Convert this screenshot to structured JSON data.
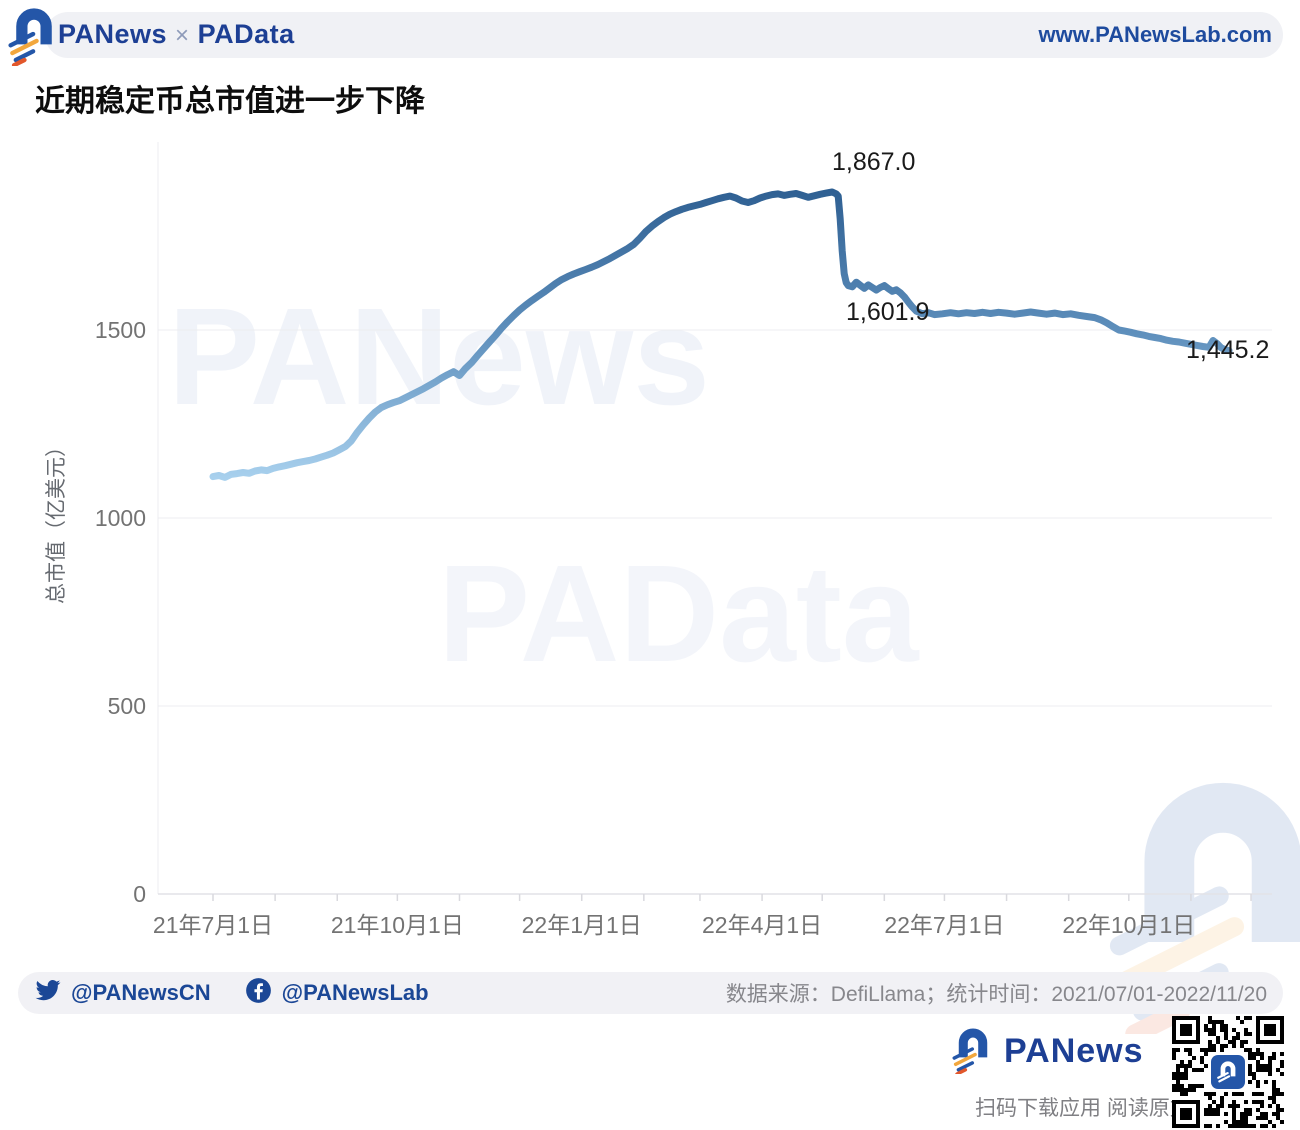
{
  "header": {
    "brand_left": "PANews",
    "brand_sep": "×",
    "brand_right": "PAData",
    "url": "www.PANewsLab.com"
  },
  "title": "近期稳定币总市值进一步下降",
  "watermarks": {
    "upper": "PANews",
    "center": "PAData"
  },
  "chart_data": {
    "type": "line",
    "title": "近期稳定币总市值进一步下降",
    "ylabel": "总市值（亿美元）",
    "ylim": [
      0,
      2000
    ],
    "y_ticks": [
      0,
      500,
      1000,
      1500
    ],
    "grid": true,
    "x_start_date": "2021-07-01",
    "x_end_date": "2022-11-20",
    "x_ticks": [
      {
        "date": "2021-07-01",
        "label": "21年7月1日"
      },
      {
        "date": "2021-10-01",
        "label": "21年10月1日"
      },
      {
        "date": "2022-01-01",
        "label": "22年1月1日"
      },
      {
        "date": "2022-04-01",
        "label": "22年4月1日"
      },
      {
        "date": "2022-07-01",
        "label": "22年7月1日"
      },
      {
        "date": "2022-10-01",
        "label": "22年10月1日"
      }
    ],
    "annotations": {
      "peak": {
        "label": "1,867.0",
        "value": 1867.0
      },
      "post_drop": {
        "label": "1,601.9",
        "value": 1601.9
      },
      "latest": {
        "label": "1,445.2",
        "value": 1445.2
      }
    },
    "line_gradient": {
      "high": "#2d5e91",
      "mid": "#5e8fbc",
      "low": "#a9d1ee"
    },
    "series": [
      {
        "name": "稳定币总市值",
        "points": [
          [
            0,
            1110
          ],
          [
            3,
            1113
          ],
          [
            6,
            1108
          ],
          [
            9,
            1116
          ],
          [
            12,
            1118
          ],
          [
            15,
            1121
          ],
          [
            18,
            1119
          ],
          [
            21,
            1125
          ],
          [
            24,
            1128
          ],
          [
            27,
            1126
          ],
          [
            30,
            1132
          ],
          [
            33,
            1136
          ],
          [
            36,
            1139
          ],
          [
            39,
            1143
          ],
          [
            42,
            1147
          ],
          [
            45,
            1150
          ],
          [
            48,
            1153
          ],
          [
            51,
            1157
          ],
          [
            54,
            1162
          ],
          [
            57,
            1167
          ],
          [
            60,
            1173
          ],
          [
            63,
            1181
          ],
          [
            66,
            1190
          ],
          [
            69,
            1205
          ],
          [
            72,
            1228
          ],
          [
            75,
            1248
          ],
          [
            78,
            1266
          ],
          [
            81,
            1282
          ],
          [
            84,
            1294
          ],
          [
            87,
            1301
          ],
          [
            90,
            1307
          ],
          [
            93,
            1312
          ],
          [
            96,
            1320
          ],
          [
            99,
            1328
          ],
          [
            102,
            1336
          ],
          [
            105,
            1344
          ],
          [
            108,
            1353
          ],
          [
            111,
            1362
          ],
          [
            114,
            1372
          ],
          [
            117,
            1381
          ],
          [
            120,
            1389
          ],
          [
            123,
            1379
          ],
          [
            126,
            1398
          ],
          [
            129,
            1413
          ],
          [
            132,
            1432
          ],
          [
            135,
            1450
          ],
          [
            138,
            1468
          ],
          [
            141,
            1486
          ],
          [
            144,
            1505
          ],
          [
            147,
            1522
          ],
          [
            150,
            1538
          ],
          [
            153,
            1553
          ],
          [
            156,
            1566
          ],
          [
            159,
            1578
          ],
          [
            162,
            1589
          ],
          [
            165,
            1600
          ],
          [
            168,
            1612
          ],
          [
            171,
            1624
          ],
          [
            174,
            1634
          ],
          [
            177,
            1642
          ],
          [
            180,
            1649
          ],
          [
            183,
            1655
          ],
          [
            186,
            1661
          ],
          [
            189,
            1667
          ],
          [
            192,
            1674
          ],
          [
            195,
            1682
          ],
          [
            198,
            1690
          ],
          [
            201,
            1699
          ],
          [
            204,
            1708
          ],
          [
            207,
            1717
          ],
          [
            210,
            1728
          ],
          [
            213,
            1744
          ],
          [
            216,
            1762
          ],
          [
            219,
            1776
          ],
          [
            222,
            1788
          ],
          [
            225,
            1799
          ],
          [
            228,
            1808
          ],
          [
            231,
            1815
          ],
          [
            234,
            1821
          ],
          [
            237,
            1826
          ],
          [
            240,
            1830
          ],
          [
            243,
            1834
          ],
          [
            246,
            1839
          ],
          [
            249,
            1844
          ],
          [
            252,
            1849
          ],
          [
            255,
            1853
          ],
          [
            258,
            1856
          ],
          [
            261,
            1851
          ],
          [
            264,
            1843
          ],
          [
            267,
            1839
          ],
          [
            270,
            1844
          ],
          [
            273,
            1851
          ],
          [
            276,
            1856
          ],
          [
            279,
            1860
          ],
          [
            282,
            1862
          ],
          [
            285,
            1858
          ],
          [
            288,
            1861
          ],
          [
            291,
            1863
          ],
          [
            294,
            1858
          ],
          [
            297,
            1853
          ],
          [
            300,
            1857
          ],
          [
            303,
            1861
          ],
          [
            306,
            1864
          ],
          [
            309,
            1867
          ],
          [
            311,
            1862
          ],
          [
            312,
            1856
          ],
          [
            313,
            1795
          ],
          [
            314,
            1710
          ],
          [
            315,
            1650
          ],
          [
            316,
            1626
          ],
          [
            317,
            1618
          ],
          [
            319,
            1615
          ],
          [
            321,
            1627
          ],
          [
            323,
            1619
          ],
          [
            325,
            1611
          ],
          [
            327,
            1620
          ],
          [
            329,
            1613
          ],
          [
            331,
            1606
          ],
          [
            333,
            1613
          ],
          [
            335,
            1618
          ],
          [
            337,
            1610
          ],
          [
            339,
            1603
          ],
          [
            341,
            1607
          ],
          [
            343,
            1599
          ],
          [
            345,
            1588
          ],
          [
            347,
            1574
          ],
          [
            349,
            1561
          ],
          [
            351,
            1550
          ],
          [
            354,
            1543
          ],
          [
            357,
            1546
          ],
          [
            360,
            1541
          ],
          [
            364,
            1543
          ],
          [
            368,
            1546
          ],
          [
            372,
            1543
          ],
          [
            376,
            1546
          ],
          [
            380,
            1544
          ],
          [
            384,
            1547
          ],
          [
            388,
            1544
          ],
          [
            392,
            1547
          ],
          [
            396,
            1545
          ],
          [
            400,
            1542
          ],
          [
            404,
            1545
          ],
          [
            408,
            1548
          ],
          [
            412,
            1545
          ],
          [
            416,
            1542
          ],
          [
            420,
            1545
          ],
          [
            424,
            1541
          ],
          [
            428,
            1543
          ],
          [
            432,
            1539
          ],
          [
            436,
            1536
          ],
          [
            440,
            1533
          ],
          [
            443,
            1527
          ],
          [
            446,
            1519
          ],
          [
            449,
            1509
          ],
          [
            452,
            1500
          ],
          [
            455,
            1497
          ],
          [
            458,
            1494
          ],
          [
            461,
            1490
          ],
          [
            464,
            1487
          ],
          [
            467,
            1483
          ],
          [
            470,
            1480
          ],
          [
            473,
            1477
          ],
          [
            476,
            1473
          ],
          [
            479,
            1470
          ],
          [
            482,
            1468
          ],
          [
            485,
            1465
          ],
          [
            488,
            1462
          ],
          [
            491,
            1459
          ],
          [
            494,
            1456
          ],
          [
            497,
            1454
          ],
          [
            499,
            1472
          ],
          [
            501,
            1464
          ],
          [
            503,
            1453
          ],
          [
            505,
            1448
          ],
          [
            507,
            1445.2
          ]
        ]
      }
    ]
  },
  "footer": {
    "twitter_handle": "@PANewsCN",
    "facebook_handle": "@PANewsLab",
    "source": "数据来源：DefiLlama；统计时间：2021/07/01-2022/11/20"
  },
  "bottom": {
    "brand": "PANews",
    "caption": "扫码下载应用  阅读原文"
  },
  "colors": {
    "brand_blue": "#1d3f94",
    "logo_blue": "#2456a8",
    "logo_orange": "#f2a73d",
    "logo_red_orange": "#e2572b",
    "axis_text": "#737373",
    "gridline": "#ececf0"
  }
}
